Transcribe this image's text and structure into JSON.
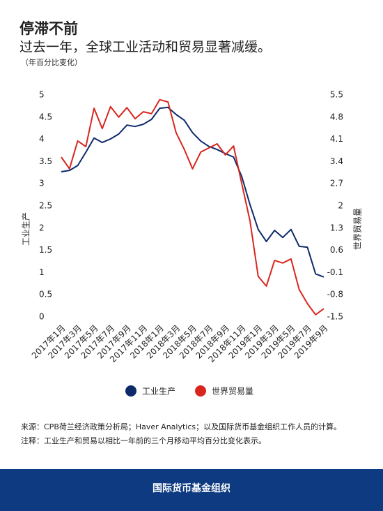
{
  "chart_data": {
    "type": "line",
    "title": "停滞不前",
    "subtitle": "过去一年，全球工业活动和贸易显著减缓。",
    "unit_note": "（年百分比变化）",
    "ylabel": "工业生产",
    "y2label": "世界贸易量",
    "categories": [
      "2017年1月",
      null,
      "2017年3月",
      null,
      "2017年5月",
      null,
      "2017年7月",
      null,
      "2017年9月",
      null,
      "2017年11月",
      null,
      "2018年1月",
      null,
      "2018年3月",
      null,
      "2018年5月",
      null,
      "2018年7月",
      null,
      "2018年9月",
      null,
      "2018年11月",
      null,
      "2019年1月",
      null,
      "2019年3月",
      null,
      "2019年5月",
      null,
      "2019年7月",
      null,
      "2019年9月"
    ],
    "series": [
      {
        "name": "工业生产",
        "color": "#0d2a6b",
        "axis": "y",
        "values": [
          3.27,
          3.3,
          3.41,
          3.71,
          4.03,
          3.93,
          4.01,
          4.12,
          4.32,
          4.29,
          4.34,
          4.45,
          4.7,
          4.72,
          4.56,
          4.43,
          4.15,
          3.96,
          3.84,
          3.77,
          3.68,
          3.6,
          3.16,
          2.53,
          1.97,
          1.7,
          1.95,
          1.79,
          1.97,
          1.59,
          1.57,
          0.97,
          0.9
        ]
      },
      {
        "name": "世界贸易量",
        "color": "#d8261e",
        "axis": "y2",
        "values": [
          3.54,
          3.17,
          4.05,
          3.87,
          5.08,
          4.44,
          5.13,
          4.8,
          5.1,
          4.75,
          4.97,
          4.91,
          5.35,
          5.28,
          4.31,
          3.78,
          3.17,
          3.7,
          3.83,
          3.96,
          3.61,
          3.89,
          2.7,
          1.53,
          -0.22,
          -0.53,
          0.28,
          0.2,
          0.33,
          -0.64,
          -1.08,
          -1.43,
          -1.24
        ]
      }
    ],
    "ylim": [
      0,
      5
    ],
    "yticks": [
      0,
      0.5,
      1,
      1.5,
      2,
      2.5,
      3,
      3.5,
      4,
      4.5,
      5
    ],
    "y2lim": [
      -1.5,
      5.5
    ],
    "y2ticks": [
      -1.5,
      -0.8,
      -0.1,
      0.6,
      1.3,
      2,
      2.7,
      3.4,
      4.1,
      4.8,
      5.5
    ],
    "grid": false,
    "legend": "bottom"
  },
  "source": "来源：CPB荷兰经济政策分析局；Haver Analytics；以及国际货币基金组织工作人员的计算。",
  "note": "注释：工业生产和贸易以相比一年前的三个月移动平均百分比变化表示。",
  "footer": "国际货币基金组织"
}
